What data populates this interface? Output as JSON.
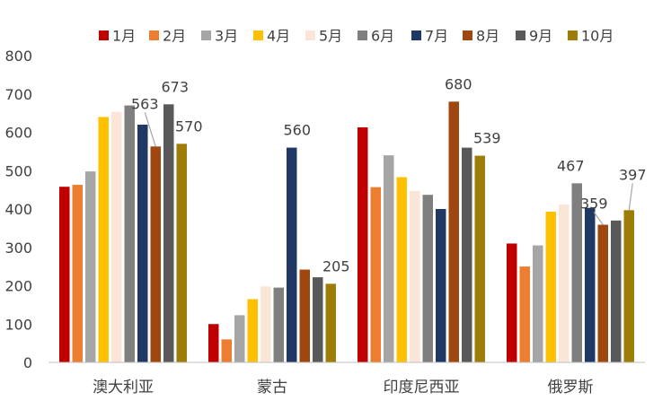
{
  "chart_data": {
    "type": "bar",
    "categories": [
      "澳大利亚",
      "蒙古",
      "印度尼西亚",
      "俄罗斯"
    ],
    "ylim": [
      0,
      800
    ],
    "yticks": [
      0,
      100,
      200,
      300,
      400,
      500,
      600,
      700,
      800
    ],
    "grid": false,
    "legend_position": "top",
    "series": [
      {
        "name": "1月",
        "color": "#C00000",
        "values": [
          458,
          100,
          613,
          310
        ]
      },
      {
        "name": "2月",
        "color": "#ED7D31",
        "values": [
          463,
          60,
          457,
          250
        ]
      },
      {
        "name": "3月",
        "color": "#A5A5A5",
        "values": [
          498,
          123,
          540,
          305
        ]
      },
      {
        "name": "4月",
        "color": "#FFC000",
        "values": [
          640,
          165,
          483,
          393
        ]
      },
      {
        "name": "5月",
        "color": "#FBE5D6",
        "values": [
          653,
          198,
          447,
          412
        ]
      },
      {
        "name": "6月",
        "color": "#7F7F7F",
        "values": [
          670,
          195,
          437,
          467
        ]
      },
      {
        "name": "7月",
        "color": "#203864",
        "values": [
          620,
          560,
          400,
          403
        ]
      },
      {
        "name": "8月",
        "color": "#A0460F",
        "values": [
          563,
          242,
          680,
          359
        ]
      },
      {
        "name": "9月",
        "color": "#595959",
        "values": [
          673,
          222,
          560,
          370
        ]
      },
      {
        "name": "10月",
        "color": "#9C7D07",
        "values": [
          570,
          205,
          539,
          397
        ]
      }
    ],
    "data_labels": [
      {
        "series": 7,
        "category": 0,
        "text": "563"
      },
      {
        "series": 8,
        "category": 0,
        "text": "673"
      },
      {
        "series": 9,
        "category": 0,
        "text": "570"
      },
      {
        "series": 6,
        "category": 1,
        "text": "560"
      },
      {
        "series": 9,
        "category": 1,
        "text": "205"
      },
      {
        "series": 7,
        "category": 2,
        "text": "680"
      },
      {
        "series": 9,
        "category": 2,
        "text": "539"
      },
      {
        "series": 5,
        "category": 3,
        "text": "467"
      },
      {
        "series": 7,
        "category": 3,
        "text": "359"
      },
      {
        "series": 9,
        "category": 3,
        "text": "397"
      }
    ]
  }
}
